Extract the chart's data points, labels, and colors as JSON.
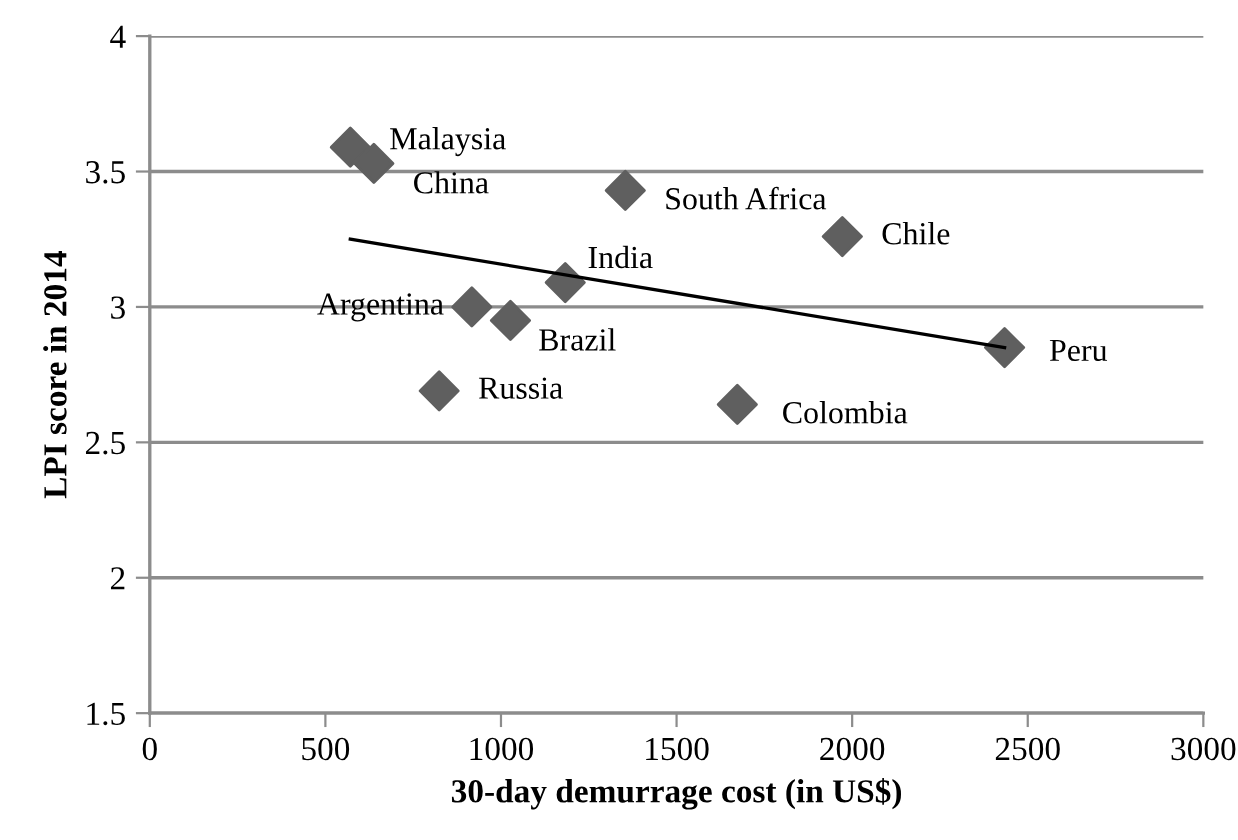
{
  "chart_data": {
    "type": "scatter",
    "xlabel": "30-day demurrage cost (in US$)",
    "ylabel": "LPI score in 2014",
    "series": [
      {
        "color": "#5f5f5f",
        "marker": "diamond",
        "x": [
          571,
          638,
          1354,
          1183,
          917,
          1027,
          824,
          1972,
          2434,
          1673
        ],
        "values": [
          3.59,
          3.53,
          3.43,
          3.09,
          3.0,
          2.95,
          2.69,
          3.26,
          2.85,
          2.64
        ]
      },
      {
        "type": "line",
        "color": "#000000",
        "marker": "none",
        "x": [
          571,
          2434
        ],
        "values": [
          3.25,
          2.85
        ]
      }
    ],
    "annotations": [
      {
        "text": "Malaysia",
        "x": 571,
        "y": 3.59
      },
      {
        "text": "China",
        "x": 638,
        "y": 3.53
      },
      {
        "text": "South Africa",
        "x": 1354,
        "y": 3.43
      },
      {
        "text": "India",
        "x": 1183,
        "y": 3.09
      },
      {
        "text": "Argentina",
        "x": 917,
        "y": 3.0
      },
      {
        "text": "Brazil",
        "x": 1027,
        "y": 2.95
      },
      {
        "text": "Russia",
        "x": 824,
        "y": 2.69
      },
      {
        "text": "Chile",
        "x": 1972,
        "y": 3.26
      },
      {
        "text": "Peru",
        "x": 2434,
        "y": 2.85
      },
      {
        "text": "Colombia",
        "x": 1673,
        "y": 2.64
      }
    ],
    "xlim": [
      0,
      3000
    ],
    "xticks": [
      0,
      500,
      1000,
      1500,
      2000,
      2500,
      3000
    ],
    "ylim": [
      1.5,
      4
    ],
    "yticks": [
      1.5,
      2,
      2.5,
      3,
      3.5,
      4
    ],
    "grid": "y",
    "legend": false
  }
}
